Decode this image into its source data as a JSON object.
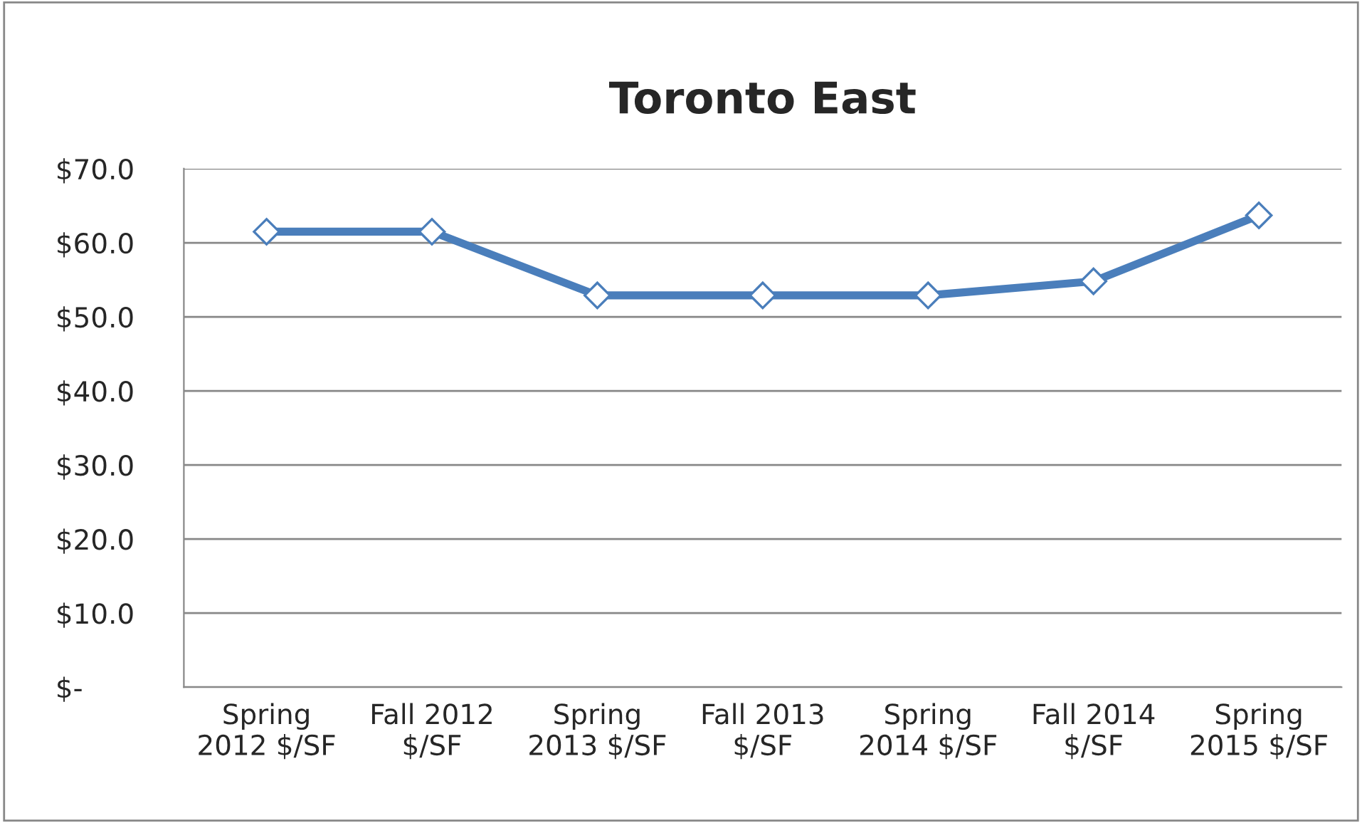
{
  "chart_data": {
    "type": "line",
    "title": "Toronto East",
    "categories": [
      "Spring 2012 $/SF",
      "Fall 2012 $/SF",
      "Spring 2013 $/SF",
      "Fall 2013 $/SF",
      "Spring 2014 $/SF",
      "Fall 2014 $/SF",
      "Spring 2015 $/SF"
    ],
    "series": [
      {
        "color": "#4a7ebb",
        "values": [
          61.5,
          61.5,
          52.9,
          52.9,
          52.9,
          54.8,
          63.7
        ]
      }
    ],
    "ylim": [
      0,
      70
    ],
    "yticks": [
      {
        "value": 0,
        "label": "$-"
      },
      {
        "value": 10,
        "label": "$10.0"
      },
      {
        "value": 20,
        "label": "$20.0"
      },
      {
        "value": 30,
        "label": "$30.0"
      },
      {
        "value": 40,
        "label": "$40.0"
      },
      {
        "value": 50,
        "label": "$50.0"
      },
      {
        "value": 60,
        "label": "$60.0"
      },
      {
        "value": 70,
        "label": "$70.0"
      }
    ],
    "grid": "y",
    "marker": "diamond",
    "line_style": "solid",
    "legend": false
  }
}
